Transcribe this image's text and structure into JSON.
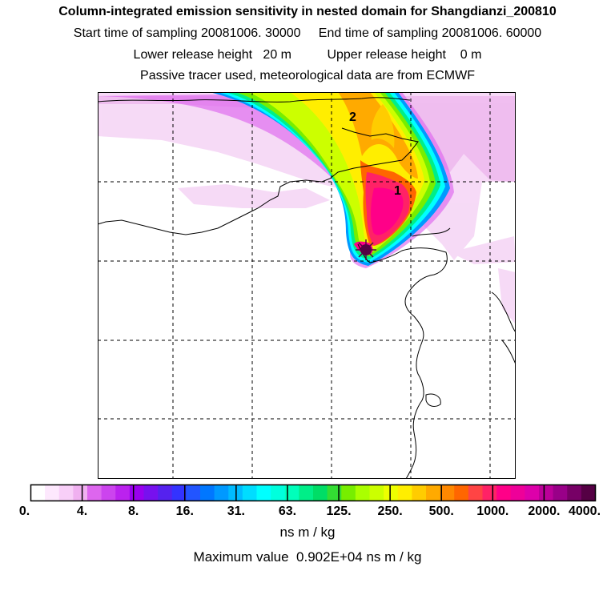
{
  "header": {
    "title": "Column-integrated emission sensitivity in nested domain for Shangdianzi_200810",
    "start_label": "Start time of sampling 20081006. 30000",
    "end_label": "End time of sampling 20081006. 60000",
    "lower_label": "Lower release height   20 m",
    "upper_label": "Upper release height    0 m",
    "tracer_note": "Passive tracer used, meteorological data are from ECMWF"
  },
  "map": {
    "cluster_labels": [
      "1",
      "2"
    ],
    "release_marker": "star-icon"
  },
  "legend": {
    "tick_labels": [
      "0.",
      "4.",
      "8.",
      "16.",
      "31.",
      "63.",
      "125.",
      "250.",
      "500.",
      "1000.",
      "2000.",
      "4000."
    ],
    "units": "ns m / kg",
    "max_text": "Maximum value  0.902E+04 ns m / kg",
    "colors": [
      "#ffffff",
      "#fde8fd",
      "#f8cff8",
      "#f0b0f0",
      "#dd66ee",
      "#cc44ee",
      "#bb22ee",
      "#9900ee",
      "#7711ee",
      "#5522ee",
      "#3333ff",
      "#2255ff",
      "#0077ff",
      "#0099ff",
      "#00bbff",
      "#00ddff",
      "#00ffff",
      "#00ffdd",
      "#00ffbb",
      "#00ee88",
      "#00dd66",
      "#33dd33",
      "#77ee00",
      "#aaff00",
      "#ccff00",
      "#eeff00",
      "#ffee00",
      "#ffcc00",
      "#ffaa00",
      "#ff8800",
      "#ff6600",
      "#ff4444",
      "#ff2266",
      "#ff0088",
      "#ee0099",
      "#dd00aa",
      "#bb0099",
      "#990088",
      "#770066",
      "#550044"
    ]
  }
}
